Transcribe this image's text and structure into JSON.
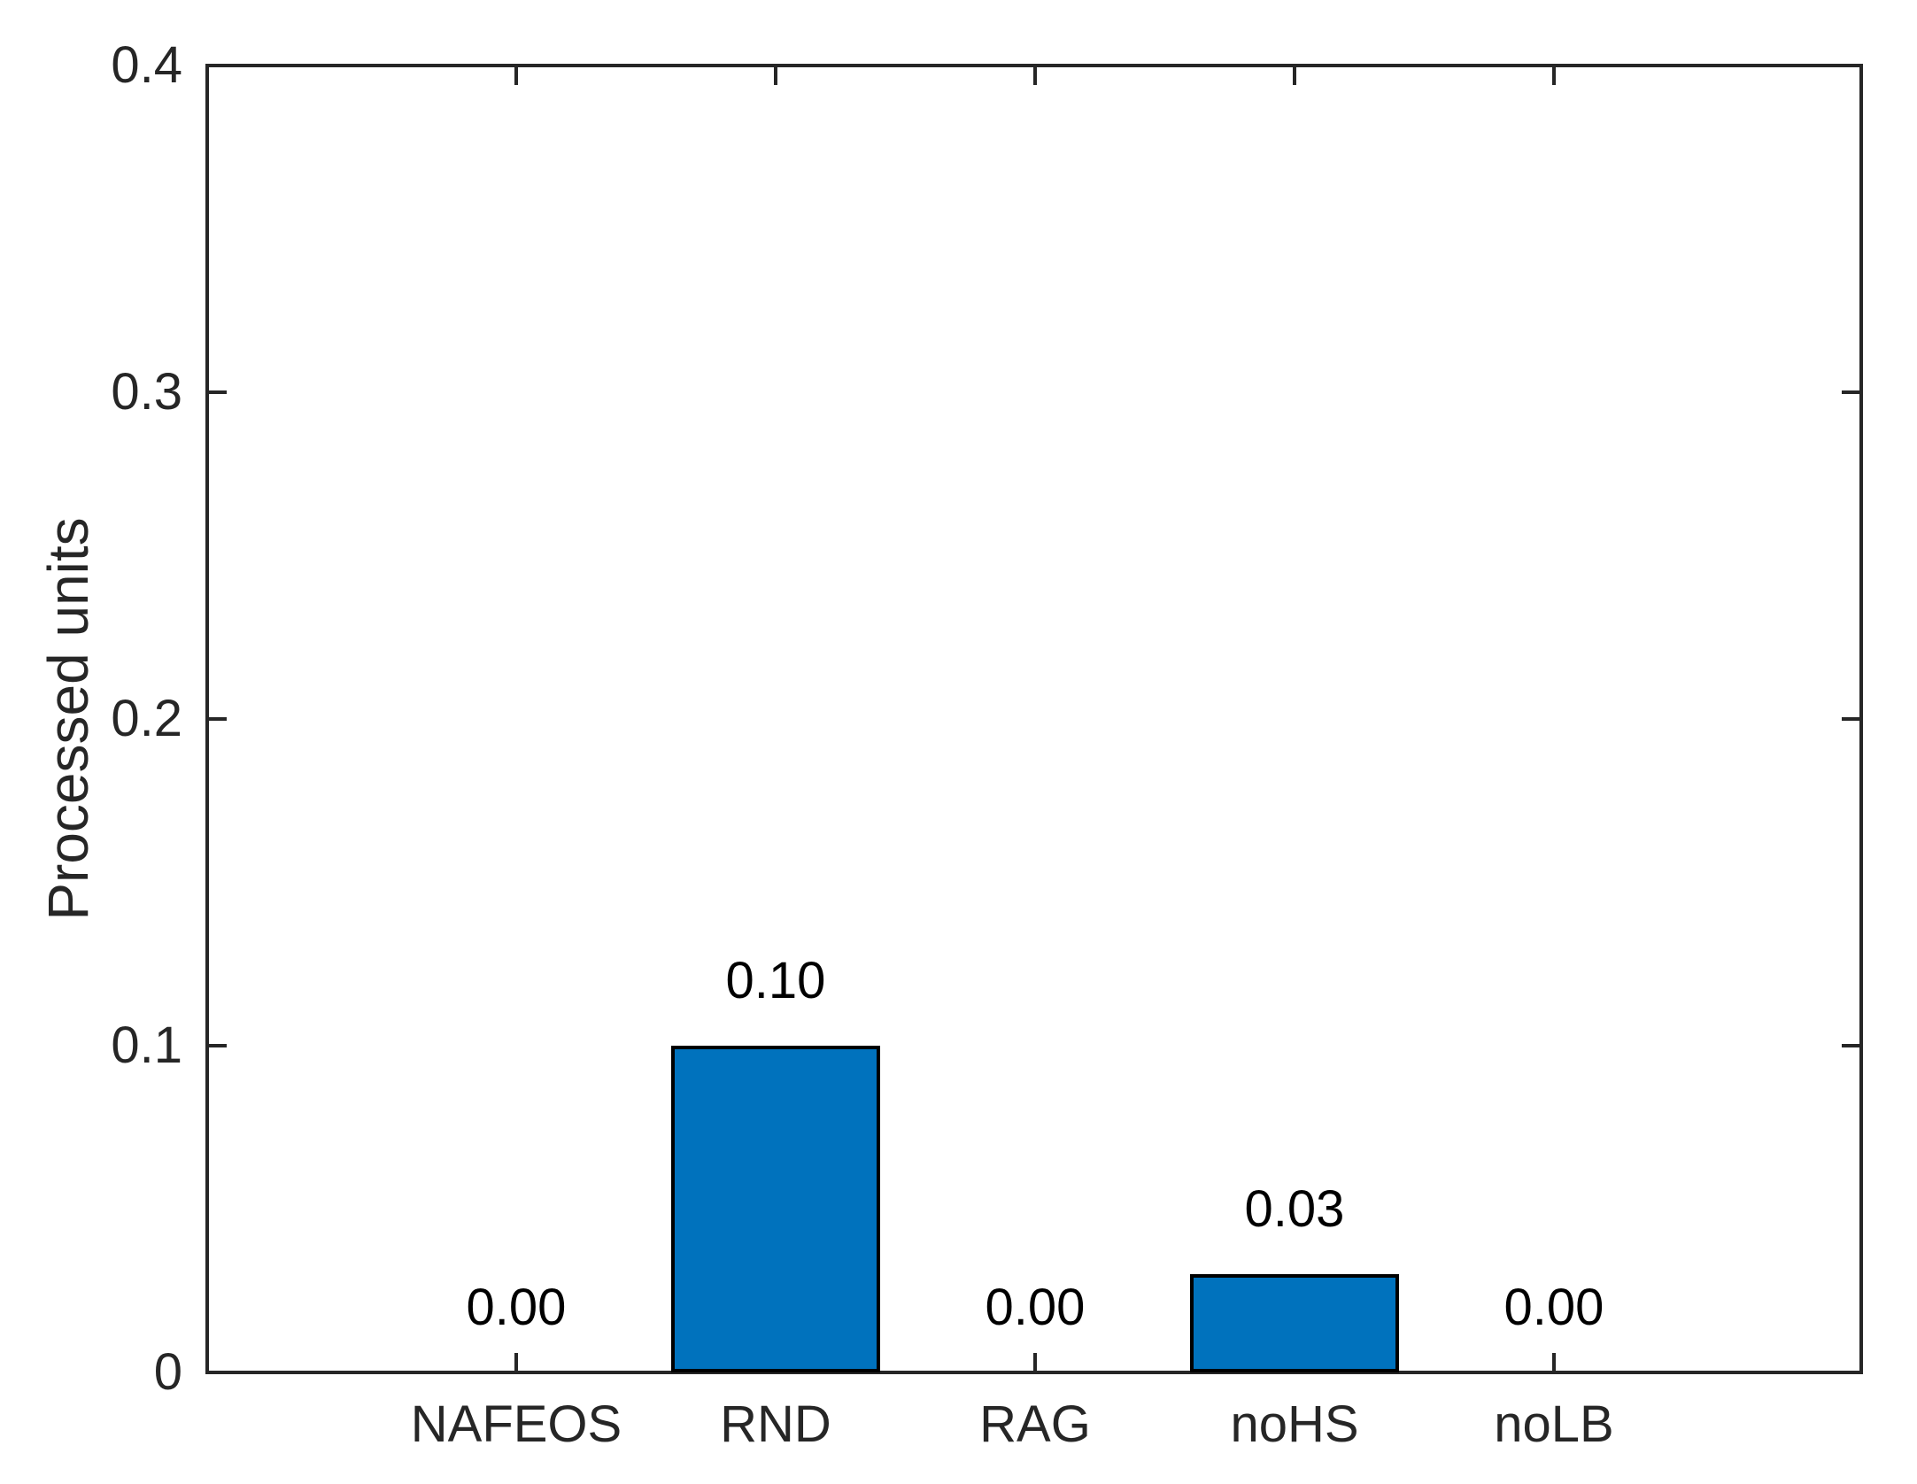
{
  "chart_data": {
    "type": "bar",
    "title": "",
    "xlabel": "",
    "ylabel": "Processed units",
    "categories": [
      "NAFEOS",
      "RND",
      "RAG",
      "noHS",
      "noLB"
    ],
    "values": [
      0.0,
      0.1,
      0.0,
      0.03,
      0.0
    ],
    "value_labels": [
      "0.00",
      "0.10",
      "0.00",
      "0.03",
      "0.00"
    ],
    "ylim": [
      0,
      0.4
    ],
    "yticks": [
      0,
      0.1,
      0.2,
      0.3,
      0.4
    ],
    "ytick_labels": [
      "0",
      "0.1",
      "0.2",
      "0.3",
      "0.4"
    ],
    "grid": false,
    "legend": null,
    "box": true,
    "tick_direction": "in",
    "bar_color": "#0072BD",
    "bar_edge_color": "#000000",
    "axis_color": "#262626",
    "background_color": "#ffffff"
  }
}
